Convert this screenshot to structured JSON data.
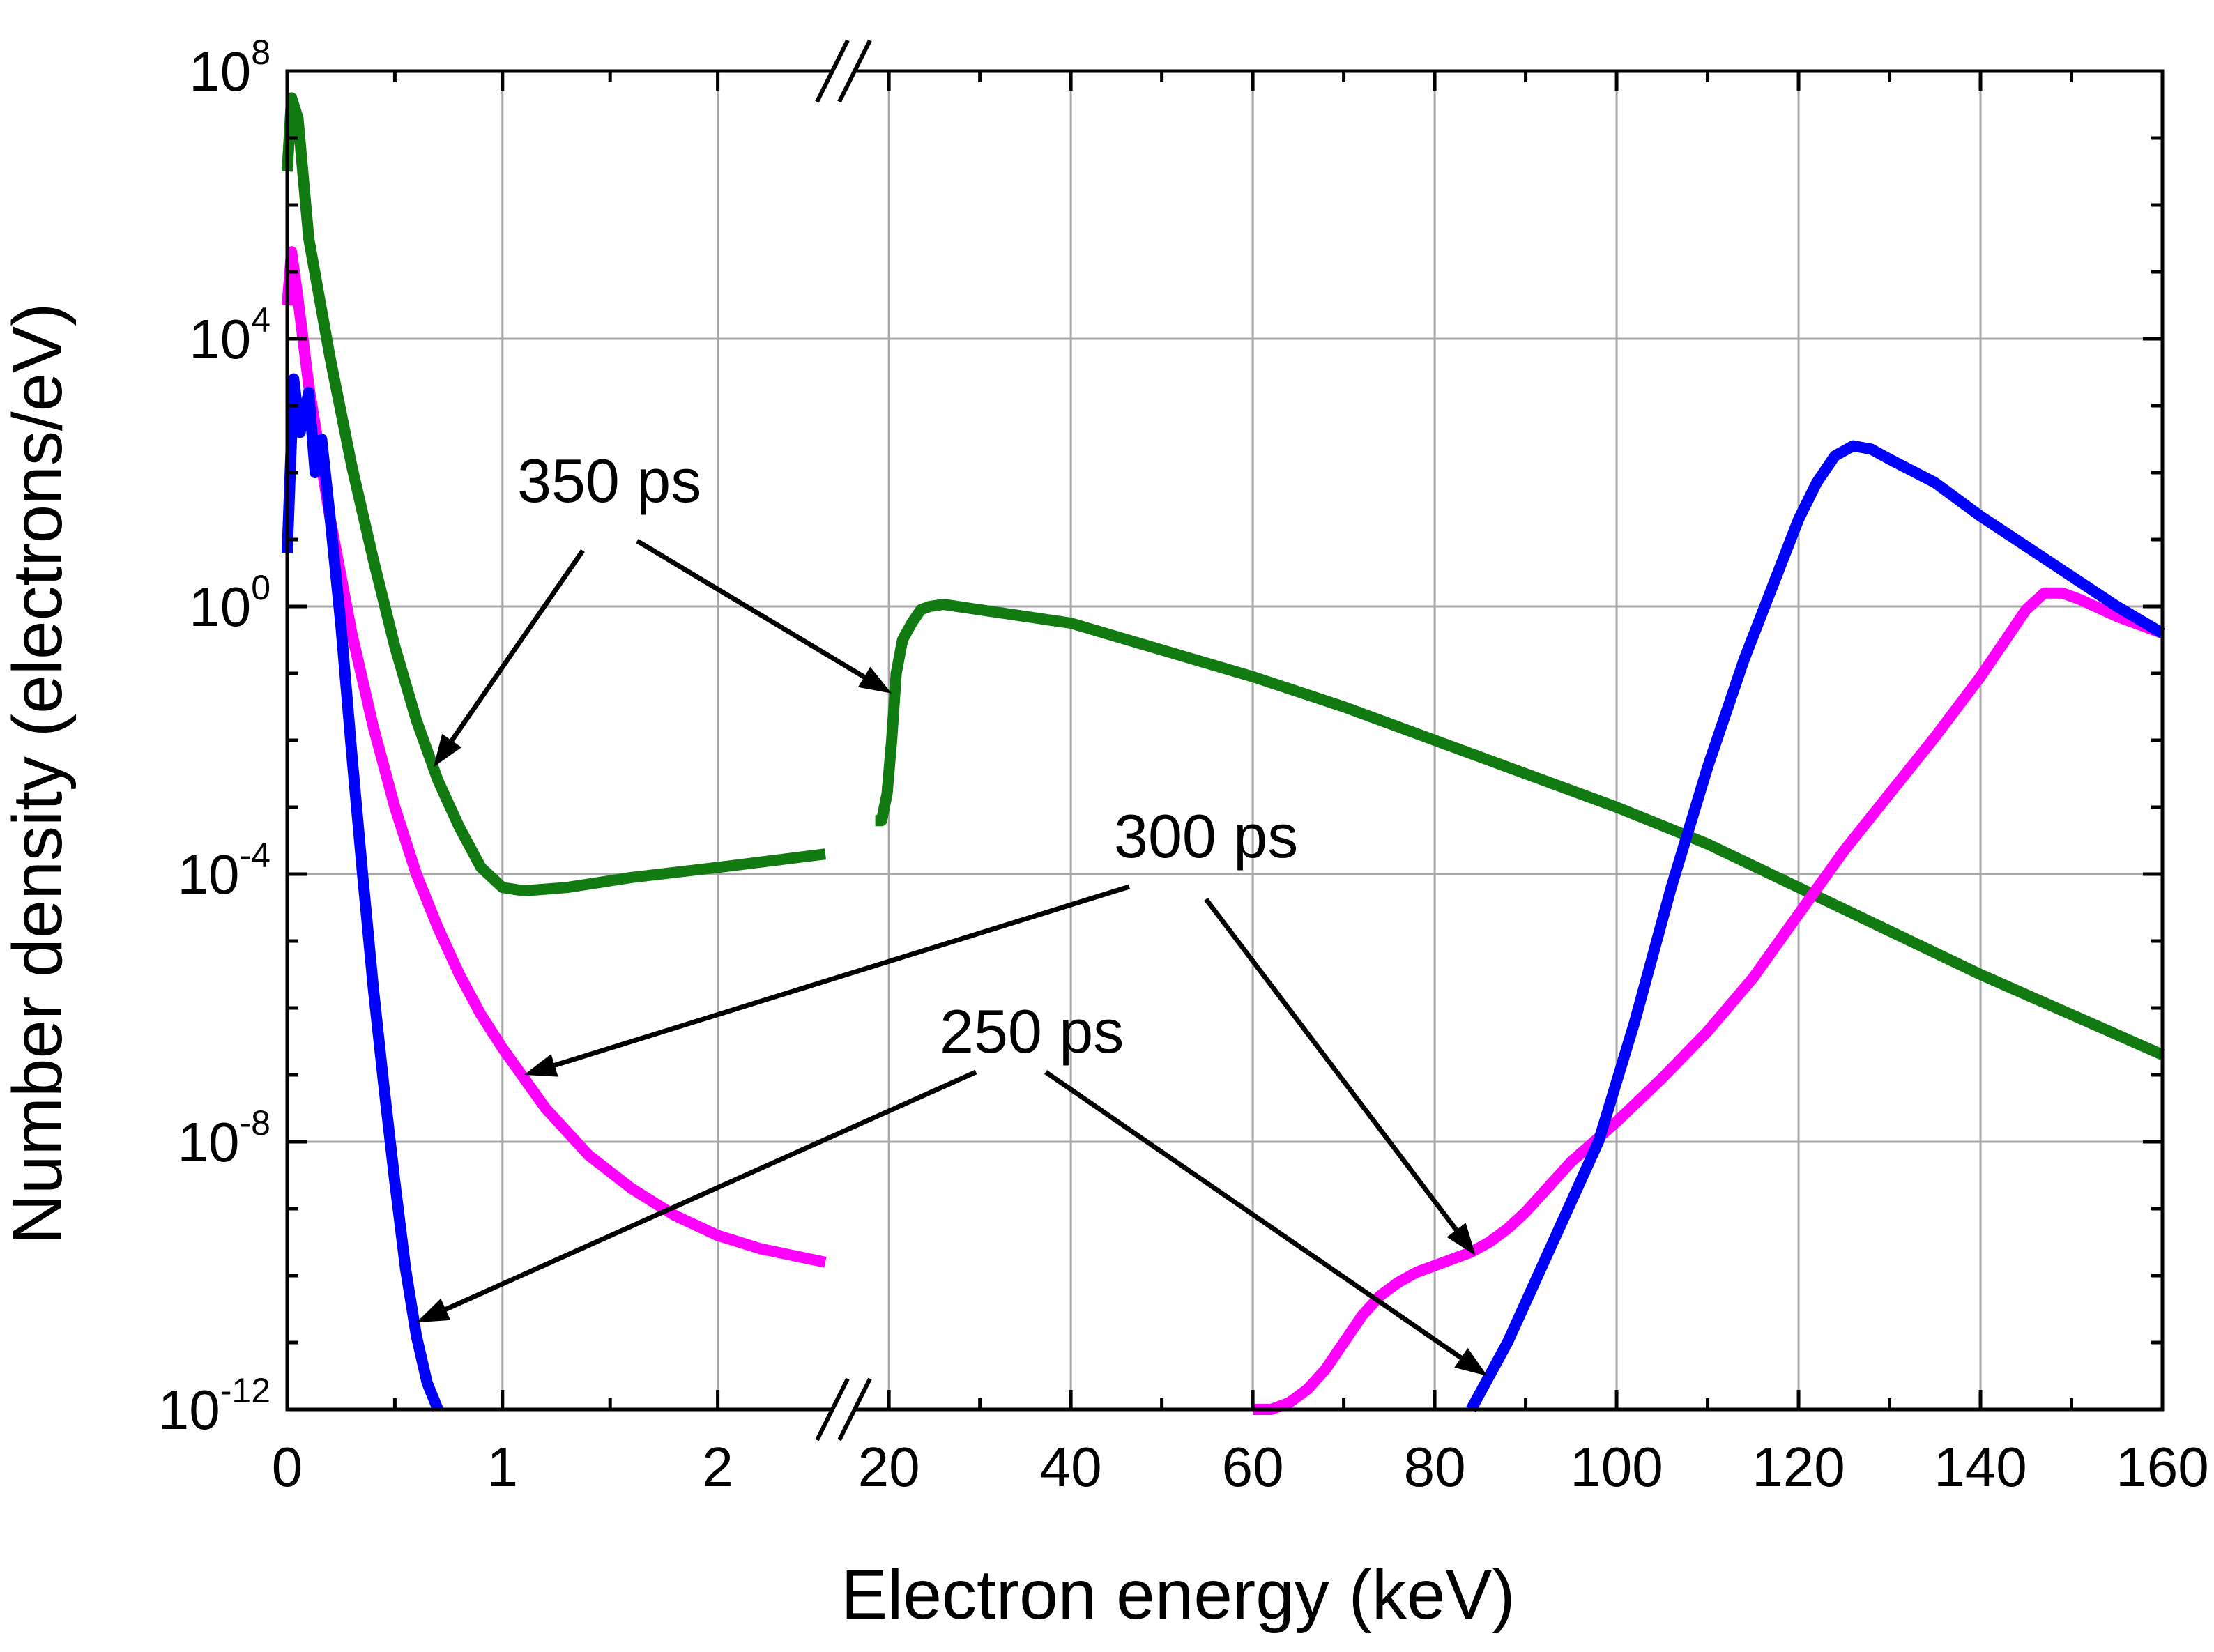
{
  "chart_data": {
    "type": "line",
    "xlabel": "Electron energy (keV)",
    "ylabel": "Number density (electrons/eV)",
    "yscale": "log",
    "ylim_exponent": [
      -12,
      8
    ],
    "x_axis_break": true,
    "x_segments": [
      {
        "range": [
          0,
          2.5
        ],
        "ticks": [
          0,
          1,
          2
        ],
        "tick_labels": [
          "0",
          "1",
          "2"
        ]
      },
      {
        "range": [
          17,
          160
        ],
        "ticks": [
          20,
          40,
          60,
          80,
          100,
          120,
          140,
          160
        ],
        "tick_labels": [
          "20",
          "40",
          "60",
          "80",
          "100",
          "120",
          "140",
          "160"
        ]
      }
    ],
    "y_ticks": [
      {
        "base": "10",
        "exponent": "8"
      },
      {
        "base": "10",
        "exponent": "4"
      },
      {
        "base": "10",
        "exponent": "0"
      },
      {
        "base": "10",
        "exponent": "-4"
      },
      {
        "base": "10",
        "exponent": "-8"
      },
      {
        "base": "10",
        "exponent": "-12"
      }
    ],
    "series": [
      {
        "name": "350 ps",
        "color": "#117a11",
        "segments": [
          {
            "x": [
              0.0,
              0.02,
              0.05,
              0.1,
              0.2,
              0.3,
              0.4,
              0.5,
              0.6,
              0.7,
              0.8,
              0.9,
              1.0,
              1.1,
              1.3,
              1.6,
              2.0,
              2.5
            ],
            "log10_y": [
              6.5,
              7.6,
              7.3,
              5.5,
              3.7,
              2.1,
              0.7,
              -0.6,
              -1.7,
              -2.6,
              -3.3,
              -3.9,
              -4.2,
              -4.25,
              -4.2,
              -4.05,
              -3.9,
              -3.7
            ]
          },
          {
            "x": [
              18.5,
              19.2,
              19.8,
              20.3,
              20.8,
              21.5,
              22.5,
              23.5,
              24.5,
              26,
              30,
              40,
              50,
              60,
              70,
              80,
              90,
              100,
              110,
              120,
              130,
              140,
              150,
              160
            ],
            "log10_y": [
              -3.2,
              -3.2,
              -2.8,
              -2.0,
              -1.0,
              -0.5,
              -0.25,
              -0.05,
              0.0,
              0.03,
              -0.05,
              -0.25,
              -0.65,
              -1.05,
              -1.5,
              -2.0,
              -2.5,
              -3.0,
              -3.55,
              -4.2,
              -4.85,
              -5.5,
              -6.1,
              -6.7
            ]
          }
        ]
      },
      {
        "name": "300 ps",
        "color": "#ff00ff",
        "segments": [
          {
            "x": [
              0.0,
              0.02,
              0.05,
              0.1,
              0.2,
              0.3,
              0.4,
              0.5,
              0.6,
              0.7,
              0.8,
              0.9,
              1.0,
              1.2,
              1.4,
              1.6,
              1.8,
              2.0,
              2.2,
              2.5
            ],
            "log10_y": [
              4.5,
              5.3,
              4.6,
              3.3,
              1.3,
              -0.4,
              -1.8,
              -3.0,
              -4.0,
              -4.8,
              -5.5,
              -6.1,
              -6.6,
              -7.5,
              -8.2,
              -8.7,
              -9.1,
              -9.4,
              -9.6,
              -9.8
            ]
          },
          {
            "x": [
              60,
              62,
              64,
              66,
              68,
              70,
              72,
              74,
              76,
              78,
              80,
              82,
              84,
              86,
              88,
              90,
              95,
              100,
              105,
              110,
              115,
              120,
              125,
              130,
              135,
              140,
              143,
              145,
              147,
              149,
              151,
              155,
              160
            ],
            "log10_y": [
              -12.0,
              -12.0,
              -11.9,
              -11.7,
              -11.4,
              -11.0,
              -10.6,
              -10.3,
              -10.1,
              -9.95,
              -9.85,
              -9.75,
              -9.65,
              -9.5,
              -9.3,
              -9.05,
              -8.3,
              -7.7,
              -7.05,
              -6.35,
              -5.55,
              -4.6,
              -3.65,
              -2.8,
              -1.95,
              -1.05,
              -0.45,
              -0.05,
              0.2,
              0.2,
              0.1,
              -0.15,
              -0.4
            ]
          }
        ]
      },
      {
        "name": "250 ps",
        "color": "#0000ff",
        "segments": [
          {
            "x": [
              0.0,
              0.03,
              0.06,
              0.1,
              0.13,
              0.16,
              0.2,
              0.25,
              0.3,
              0.35,
              0.4,
              0.45,
              0.5,
              0.55,
              0.6,
              0.65,
              0.7
            ],
            "log10_y": [
              0.8,
              3.4,
              2.6,
              3.2,
              2.0,
              2.5,
              1.3,
              -0.3,
              -2.2,
              -4.0,
              -5.7,
              -7.2,
              -8.6,
              -9.9,
              -10.9,
              -11.6,
              -12.0
            ]
          },
          {
            "x": [
              84,
              86,
              88,
              90,
              92,
              95,
              98,
              100,
              102,
              104,
              106,
              108,
              110,
              112,
              114,
              116,
              118,
              120,
              122,
              124,
              126,
              128,
              130,
              135,
              140,
              145,
              150,
              155,
              160
            ],
            "log10_y": [
              -12.0,
              -11.5,
              -11.0,
              -10.4,
              -9.8,
              -8.9,
              -8.0,
              -7.1,
              -6.2,
              -5.2,
              -4.2,
              -3.3,
              -2.4,
              -1.6,
              -0.8,
              -0.1,
              0.6,
              1.3,
              1.85,
              2.25,
              2.4,
              2.35,
              2.2,
              1.85,
              1.35,
              0.9,
              0.45,
              0.0,
              -0.4
            ]
          }
        ]
      }
    ],
    "annotations": [
      {
        "text": "350 ps",
        "arrow_targets": [
          [
            0.68,
            -2.4
          ],
          [
            20.3,
            -1.3
          ]
        ]
      },
      {
        "text": "300 ps",
        "arrow_targets": [
          [
            1.1,
            -7.0
          ],
          [
            84.5,
            -9.7
          ]
        ]
      },
      {
        "text": "250 ps",
        "arrow_targets": [
          [
            0.6,
            -10.7
          ],
          [
            85.8,
            -11.5
          ]
        ]
      }
    ]
  }
}
